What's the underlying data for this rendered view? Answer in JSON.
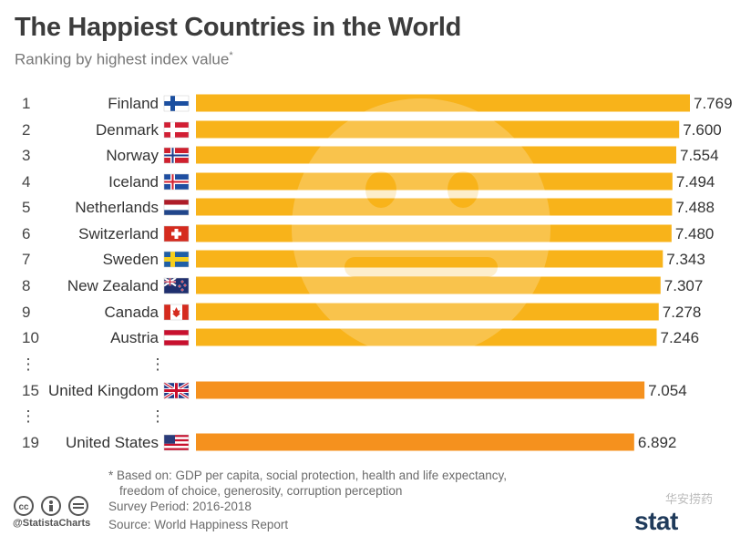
{
  "title": "The Happiest Countries in the World",
  "subtitle": "Ranking by highest index value",
  "subtitle_mark": "*",
  "chart_data": {
    "type": "bar",
    "orientation": "horizontal",
    "rows": [
      {
        "rank": "1",
        "country": "Finland",
        "value": 7.769,
        "label": "7.769",
        "flag": "fi",
        "color": "#f8b31a"
      },
      {
        "rank": "2",
        "country": "Denmark",
        "value": 7.6,
        "label": "7.600",
        "flag": "dk",
        "color": "#f8b31a"
      },
      {
        "rank": "3",
        "country": "Norway",
        "value": 7.554,
        "label": "7.554",
        "flag": "no",
        "color": "#f8b31a"
      },
      {
        "rank": "4",
        "country": "Iceland",
        "value": 7.494,
        "label": "7.494",
        "flag": "is",
        "color": "#f8b31a"
      },
      {
        "rank": "5",
        "country": "Netherlands",
        "value": 7.488,
        "label": "7.488",
        "flag": "nl",
        "color": "#f8b31a"
      },
      {
        "rank": "6",
        "country": "Switzerland",
        "value": 7.48,
        "label": "7.480",
        "flag": "ch",
        "color": "#f8b31a"
      },
      {
        "rank": "7",
        "country": "Sweden",
        "value": 7.343,
        "label": "7.343",
        "flag": "se",
        "color": "#f8b31a"
      },
      {
        "rank": "8",
        "country": "New Zealand",
        "value": 7.307,
        "label": "7.307",
        "flag": "nz",
        "color": "#f8b31a"
      },
      {
        "rank": "9",
        "country": "Canada",
        "value": 7.278,
        "label": "7.278",
        "flag": "ca",
        "color": "#f8b31a"
      },
      {
        "rank": "10",
        "country": "Austria",
        "value": 7.246,
        "label": "7.246",
        "flag": "at",
        "color": "#f8b31a"
      },
      {
        "rank": "15",
        "country": "United Kingdom",
        "value": 7.054,
        "label": "7.054",
        "flag": "gb",
        "color": "#f5911e"
      },
      {
        "rank": "19",
        "country": "United States",
        "value": 6.892,
        "label": "6.892",
        "flag": "us",
        "color": "#f5911e"
      }
    ],
    "ellipsis_glyph": "⋮",
    "ellipsis_after_ranks": [
      "10",
      "15"
    ],
    "xlim": [
      0,
      7.769
    ],
    "background_icon": "smiley-face-icon"
  },
  "footnote": {
    "line1": "* Based on: GDP per capita, social protection, health and life expectancy,",
    "line2": "freedom of choice, generosity, corruption perception",
    "survey": "Survey Period: 2016-2018",
    "source": "Source: World Happiness Report"
  },
  "brand_handle": "@StatistaCharts",
  "logo_text": "stat",
  "watermark_text": "华安捞药"
}
